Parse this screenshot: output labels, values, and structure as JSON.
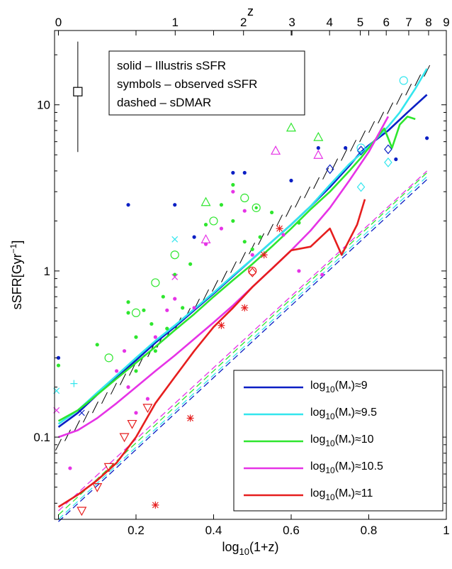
{
  "chart_data": {
    "type": "line",
    "xlabel": "log10(1+z)",
    "ylabel": "sSFR[Gyr−1]",
    "x_top_label": "z",
    "yscale": "log",
    "xlim": [
      -0.01,
      1.0
    ],
    "ylim": [
      0.032,
      28
    ],
    "x_ticks": [
      0.2,
      0.4,
      0.6,
      0.8,
      1
    ],
    "x_tick_labels": [
      "0.2",
      "0.4",
      "0.6",
      "0.8",
      "1"
    ],
    "y_ticks": [
      0.1,
      1,
      10
    ],
    "y_tick_labels": [
      "0.1",
      "1",
      "10"
    ],
    "top_ticks": [
      0,
      1,
      2,
      3,
      4,
      5,
      6,
      7,
      8,
      9
    ],
    "top_tick_labels": [
      "0",
      "1",
      "2",
      "3",
      "4",
      "5",
      "6",
      "7",
      "8",
      "9"
    ],
    "annotation_lines": [
      "solid – Illustris sSFR",
      "symbols – observed sSFR",
      "dashed – sDMAR"
    ],
    "legend_position": "lower-right",
    "grid": false,
    "series": [
      {
        "name": "log10(M*)≈9",
        "color": "#0a1fc4",
        "x": [
          0,
          0.05,
          0.1,
          0.15,
          0.2,
          0.25,
          0.3,
          0.35,
          0.4,
          0.45,
          0.5,
          0.55,
          0.6,
          0.65,
          0.7,
          0.75,
          0.78,
          0.8,
          0.85,
          0.9,
          0.95
        ],
        "y": [
          0.115,
          0.14,
          0.18,
          0.23,
          0.29,
          0.37,
          0.46,
          0.58,
          0.73,
          0.93,
          1.18,
          1.5,
          1.9,
          2.45,
          3.2,
          4.3,
          5.2,
          5.7,
          7.0,
          9.0,
          11.5
        ],
        "dashed_x": [
          0,
          0.95
        ],
        "dashed_y": [
          0.031,
          3.55
        ]
      },
      {
        "name": "log10(M*)≈9.5",
        "color": "#33e6ee",
        "x": [
          0,
          0.05,
          0.1,
          0.15,
          0.2,
          0.25,
          0.3,
          0.35,
          0.4,
          0.45,
          0.5,
          0.55,
          0.6,
          0.65,
          0.7,
          0.75,
          0.8,
          0.85,
          0.88,
          0.92,
          0.95
        ],
        "y": [
          0.12,
          0.145,
          0.185,
          0.235,
          0.3,
          0.38,
          0.47,
          0.59,
          0.74,
          0.94,
          1.18,
          1.5,
          1.9,
          2.45,
          3.3,
          4.4,
          5.6,
          7.4,
          9.0,
          12.5,
          16.5
        ],
        "dashed_x": [
          0,
          0.95
        ],
        "dashed_y": [
          0.032,
          3.7
        ]
      },
      {
        "name": "log10(M*)≈10",
        "color": "#2ee62e",
        "x": [
          0,
          0.05,
          0.1,
          0.15,
          0.2,
          0.25,
          0.3,
          0.35,
          0.4,
          0.45,
          0.5,
          0.55,
          0.6,
          0.65,
          0.7,
          0.75,
          0.78,
          0.8,
          0.84,
          0.86,
          0.88,
          0.9,
          0.92
        ],
        "y": [
          0.125,
          0.145,
          0.18,
          0.225,
          0.28,
          0.35,
          0.44,
          0.55,
          0.7,
          0.88,
          1.1,
          1.4,
          1.8,
          2.35,
          3.0,
          4.0,
          4.8,
          5.5,
          7.2,
          5.5,
          7.6,
          8.5,
          8.2
        ],
        "dashed_x": [
          0,
          0.95
        ],
        "dashed_y": [
          0.034,
          3.9
        ]
      },
      {
        "name": "log10(M*)≈10.5",
        "color": "#e633e6",
        "x": [
          0,
          0.05,
          0.1,
          0.15,
          0.2,
          0.25,
          0.3,
          0.35,
          0.4,
          0.45,
          0.5,
          0.55,
          0.6,
          0.65,
          0.7,
          0.75,
          0.8,
          0.85
        ],
        "y": [
          0.1,
          0.11,
          0.13,
          0.16,
          0.2,
          0.25,
          0.31,
          0.39,
          0.49,
          0.62,
          0.8,
          1.03,
          1.33,
          1.75,
          2.4,
          3.5,
          5.2,
          8.5
        ],
        "dashed_x": [
          0,
          0.95
        ],
        "dashed_y": [
          0.036,
          4.0
        ]
      },
      {
        "name": "log10(M*)≈11",
        "color": "#e61e1e",
        "x": [
          0,
          0.05,
          0.1,
          0.15,
          0.2,
          0.25,
          0.3,
          0.35,
          0.4,
          0.45,
          0.5,
          0.55,
          0.6,
          0.65,
          0.7,
          0.73,
          0.77,
          0.79
        ],
        "y": [
          0.038,
          0.045,
          0.055,
          0.07,
          0.1,
          0.16,
          0.23,
          0.33,
          0.46,
          0.6,
          0.8,
          1.03,
          1.33,
          1.4,
          1.8,
          1.25,
          1.9,
          2.7
        ]
      }
    ],
    "sdmar_hatch": {
      "x": [
        0.0,
        0.95
      ],
      "y": [
        0.09,
        16
      ]
    },
    "observations": [
      {
        "series": "log10(M*)≈9",
        "marker": "dot",
        "x": [
          0.0,
          0.18,
          0.3,
          0.45,
          0.48,
          0.67,
          0.74,
          0.87,
          0.95,
          0.6,
          0.35
        ],
        "y": [
          0.3,
          2.5,
          2.5,
          3.9,
          3.9,
          5.5,
          5.5,
          4.7,
          6.3,
          3.5,
          1.6
        ]
      },
      {
        "series": "log10(M*)≈9",
        "marker": "diamond",
        "x": [
          0.7,
          0.78,
          0.85
        ],
        "y": [
          4.1,
          5.3,
          5.4
        ]
      },
      {
        "series": "log10(M*)≈9",
        "marker": "cross",
        "x": [
          0.06
        ],
        "y": [
          0.14
        ]
      },
      {
        "series": "log10(M*)≈9.5",
        "marker": "circle",
        "x": [
          0.78,
          0.89
        ],
        "y": [
          5.5,
          14
        ]
      },
      {
        "series": "log10(M*)≈9.5",
        "marker": "diamond",
        "x": [
          0.78,
          0.85
        ],
        "y": [
          3.2,
          4.5
        ]
      },
      {
        "series": "log10(M*)≈9.5",
        "marker": "cross",
        "x": [
          -0.005,
          0.3
        ],
        "y": [
          0.19,
          1.55
        ]
      },
      {
        "series": "log10(M*)≈9.5",
        "marker": "plus",
        "x": [
          0.04
        ],
        "y": [
          0.21
        ]
      },
      {
        "series": "log10(M*)≈10",
        "marker": "circle",
        "x": [
          0.13,
          0.2,
          0.25,
          0.3,
          0.4,
          0.48
        ],
        "y": [
          0.3,
          0.56,
          0.85,
          1.25,
          2.0,
          2.75
        ]
      },
      {
        "series": "log10(M*)≈10",
        "marker": "triangle-up",
        "x": [
          0.38,
          0.6,
          0.67
        ],
        "y": [
          2.6,
          7.3,
          6.4
        ]
      },
      {
        "series": "log10(M*)≈10",
        "marker": "dot",
        "x": [
          0.0,
          0.1,
          0.18,
          0.18,
          0.2,
          0.22,
          0.25,
          0.27,
          0.28,
          0.3,
          0.32,
          0.34,
          0.38,
          0.42,
          0.45,
          0.45,
          0.48,
          0.5,
          0.52,
          0.55,
          0.62,
          0.2,
          0.24
        ],
        "y": [
          0.27,
          0.36,
          0.56,
          0.65,
          0.4,
          0.58,
          0.33,
          0.7,
          0.45,
          0.95,
          0.6,
          1.1,
          1.9,
          2.5,
          2.0,
          3.3,
          1.5,
          1.35,
          1.6,
          2.25,
          1.95,
          0.25,
          0.48
        ]
      },
      {
        "series": "log10(M*)≈10",
        "marker": "circle-dot",
        "x": [
          0.51
        ],
        "y": [
          2.4
        ]
      },
      {
        "series": "log10(M*)≈10.5",
        "marker": "dot",
        "x": [
          0.03,
          0.15,
          0.17,
          0.2,
          0.23,
          0.25,
          0.28,
          0.3,
          0.35,
          0.38,
          0.42,
          0.45,
          0.48,
          0.5,
          0.58,
          0.62,
          0.68,
          0.18
        ],
        "y": [
          0.065,
          0.25,
          0.33,
          0.14,
          0.17,
          0.4,
          0.58,
          0.68,
          0.6,
          1.45,
          1.8,
          3.0,
          2.3,
          1.25,
          1.65,
          1.0,
          0.95,
          0.2
        ]
      },
      {
        "series": "log10(M*)≈10.5",
        "marker": "triangle-up",
        "x": [
          0.38,
          0.56,
          0.67
        ],
        "y": [
          1.55,
          5.3,
          5.0
        ]
      },
      {
        "series": "log10(M*)≈10.5",
        "marker": "cross",
        "x": [
          -0.005,
          0.3
        ],
        "y": [
          0.145,
          0.92
        ]
      },
      {
        "series": "log10(M*)≈11",
        "marker": "triangle-down",
        "x": [
          0.06,
          0.1,
          0.13,
          0.17,
          0.19,
          0.23
        ],
        "y": [
          0.036,
          0.05,
          0.066,
          0.1,
          0.12,
          0.15
        ]
      },
      {
        "series": "log10(M*)≈11",
        "marker": "asterisk",
        "x": [
          0.25,
          0.34,
          0.42,
          0.48,
          0.53,
          0.57
        ],
        "y": [
          0.039,
          0.13,
          0.47,
          0.6,
          1.25,
          1.8
        ]
      },
      {
        "series": "log10(M*)≈11",
        "marker": "diamond",
        "x": [
          0.5
        ],
        "y": [
          0.98
        ]
      },
      {
        "series": "log10(M*)≈11",
        "marker": "circle",
        "x": [
          0.5
        ],
        "y": [
          1.0
        ]
      }
    ],
    "reference_error_bar": {
      "x": 0.05,
      "y": 12,
      "ylow": 5.2,
      "yhigh": 24
    }
  }
}
